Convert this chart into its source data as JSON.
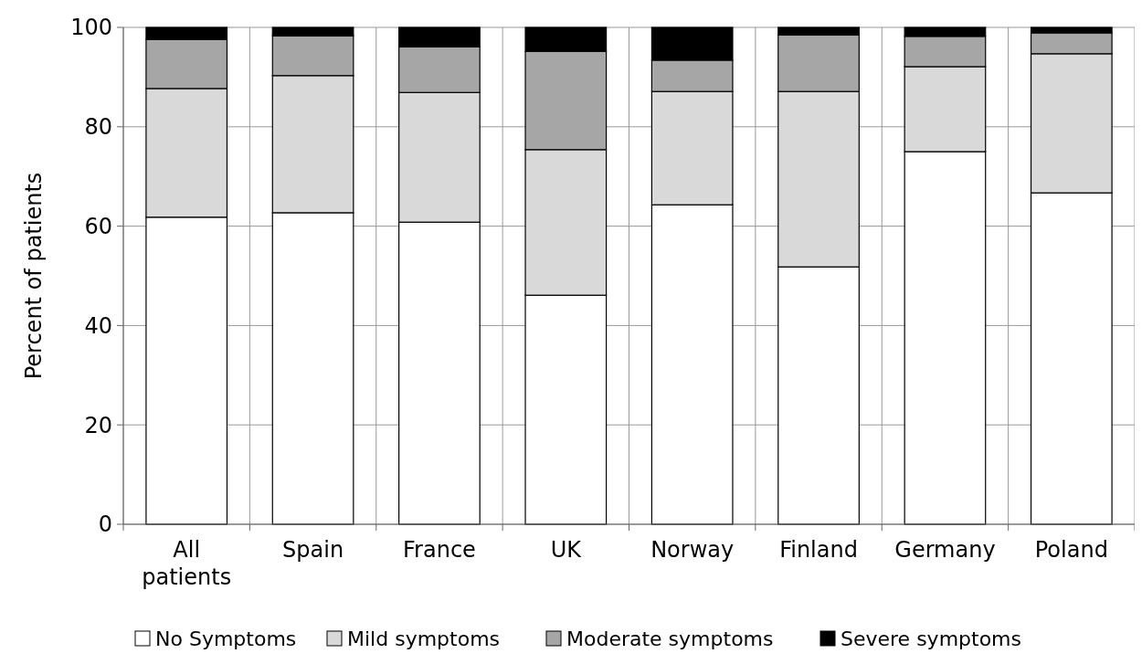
{
  "chart_data": {
    "type": "bar",
    "stacked": true,
    "ylabel": "Percent of patients",
    "categories": [
      "All patients",
      "Spain",
      "France",
      "UK",
      "Norway",
      "Finland",
      "Germany",
      "Poland"
    ],
    "series": [
      {
        "name": "No Symptoms",
        "color": "#ffffff",
        "values": [
          61.8,
          62.7,
          60.8,
          46.1,
          64.3,
          51.8,
          75.0,
          66.7
        ]
      },
      {
        "name": "Mild symptoms",
        "color": "#d9d9d9",
        "values": [
          25.9,
          27.6,
          26.1,
          29.3,
          22.8,
          35.3,
          17.1,
          28.0
        ]
      },
      {
        "name": "Moderate symptoms",
        "color": "#a6a6a6",
        "values": [
          9.9,
          8.0,
          9.2,
          19.8,
          6.3,
          11.4,
          6.1,
          4.2
        ]
      },
      {
        "name": "Severe symptoms",
        "color": "#000000",
        "values": [
          2.4,
          1.7,
          3.9,
          4.8,
          6.6,
          1.5,
          1.8,
          1.1
        ]
      }
    ],
    "ylim": [
      0,
      100
    ],
    "yticks": [
      0,
      20,
      40,
      60,
      80,
      100
    ],
    "grid": true,
    "legend": "bottom"
  }
}
